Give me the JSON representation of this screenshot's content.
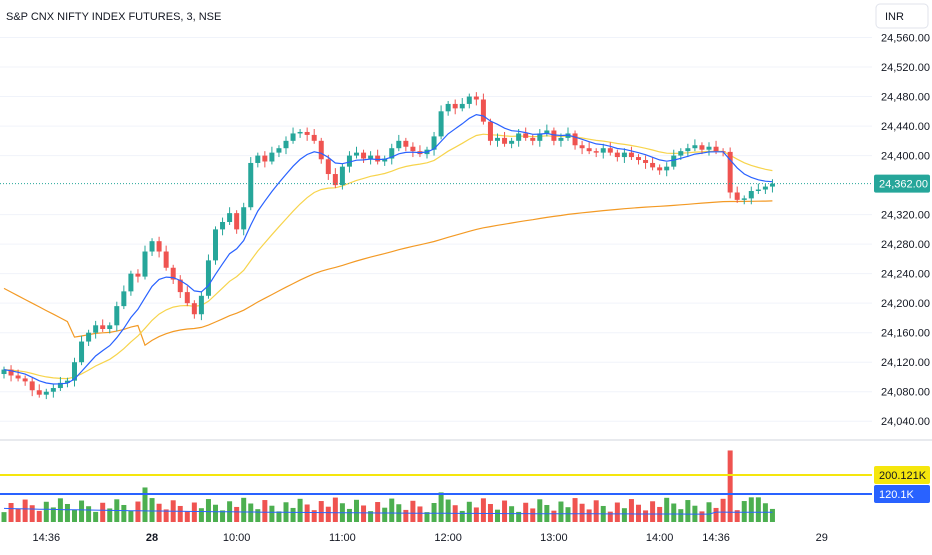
{
  "header": {
    "title": "S&P CNX NIFTY INDEX FUTURES, 3, NSE",
    "currency": "INR"
  },
  "colors": {
    "up": "#26a69a",
    "up_bar": "#4caf50",
    "down": "#ef5350",
    "ema_fast": "#2962ff",
    "ema_slow": "#f7d44c",
    "vwap": "#f39a25",
    "vol_line_blue": "#2962ff",
    "vol_line_yellow": "#f5e60d",
    "last_price": "#26a69a",
    "grid": "#f0f3fa",
    "axis_text": "#131722"
  },
  "chart_data": {
    "type": "candlestick",
    "title": "S&P CNX NIFTY INDEX FUTURES, 3, NSE",
    "ylim": [
      24020,
      24600
    ],
    "y_ticks": [
      "24,560.00",
      "24,520.00",
      "24,480.00",
      "24,440.00",
      "24,400.00",
      "24,320.00",
      "24,280.00",
      "24,240.00",
      "24,200.00",
      "24,160.00",
      "24,120.00",
      "24,080.00",
      "24,040.00"
    ],
    "y_tick_values": [
      24560,
      24520,
      24480,
      24440,
      24400,
      24320,
      24280,
      24240,
      24200,
      24160,
      24120,
      24080,
      24040
    ],
    "x_labels": [
      {
        "label": "14:36",
        "bold": false,
        "x_index": 6
      },
      {
        "label": "28",
        "bold": true,
        "x_index": 21
      },
      {
        "label": "10:00",
        "bold": false,
        "x_index": 33
      },
      {
        "label": "11:00",
        "bold": false,
        "x_index": 48
      },
      {
        "label": "12:00",
        "bold": false,
        "x_index": 63
      },
      {
        "label": "13:00",
        "bold": false,
        "x_index": 78
      },
      {
        "label": "14:00",
        "bold": false,
        "x_index": 93
      },
      {
        "label": "14:36",
        "bold": false,
        "x_index": 101
      },
      {
        "label": "29",
        "bold": false,
        "x_index": 116
      }
    ],
    "last_price": {
      "value": 24362,
      "label": "24,362.00"
    },
    "closes": [
      24110,
      24102,
      24098,
      24094,
      24082,
      24076,
      24080,
      24085,
      24092,
      24095,
      24120,
      24148,
      24160,
      24170,
      24165,
      24170,
      24196,
      24216,
      24240,
      24236,
      24270,
      24284,
      24270,
      24248,
      24232,
      24215,
      24200,
      24185,
      24210,
      24258,
      24300,
      24310,
      24322,
      24300,
      24330,
      24390,
      24400,
      24392,
      24404,
      24410,
      24420,
      24430,
      24432,
      24428,
      24420,
      24395,
      24375,
      24360,
      24385,
      24400,
      24404,
      24396,
      24400,
      24392,
      24396,
      24410,
      24420,
      24412,
      24406,
      24402,
      24408,
      24426,
      24460,
      24470,
      24464,
      24470,
      24480,
      24476,
      24446,
      24420,
      24424,
      24416,
      24420,
      24430,
      24424,
      24420,
      24430,
      24434,
      24420,
      24424,
      24430,
      24414,
      24410,
      24406,
      24404,
      24410,
      24404,
      24398,
      24404,
      24398,
      24394,
      24390,
      24384,
      24380,
      24385,
      24400,
      24406,
      24410,
      24414,
      24408,
      24412,
      24406,
      24405,
      24350,
      24340,
      24342,
      24352,
      24354,
      24358,
      24362
    ],
    "volume": {
      "levels": [
        {
          "label": "200.121K",
          "value": 200.121,
          "color": "#f5e60d"
        },
        {
          "label": "120.1K",
          "value": 120.1,
          "color": "#2962ff"
        }
      ],
      "max": 300
    }
  }
}
